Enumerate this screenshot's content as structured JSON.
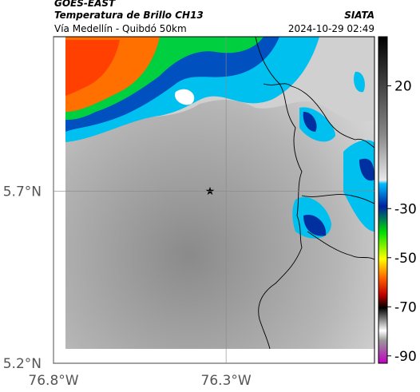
{
  "header": {
    "source": "GOES-EAST",
    "title": "Temperatura de Brillo CH13",
    "brand": "SIATA",
    "subtitle": "Vía Medellín - Quibdó 50km",
    "timestamp": "2024-10-29 02:49"
  },
  "map": {
    "lonlim": [
      -76.8,
      -75.87
    ],
    "latlim": [
      5.2,
      6.15
    ],
    "lonticks": [
      {
        "value": -76.8,
        "label": "76.8°W"
      },
      {
        "value": -76.3,
        "label": "76.3°W"
      }
    ],
    "latticks": [
      {
        "value": 5.7,
        "label": "5.7°N"
      },
      {
        "value": 5.2,
        "label": "5.2°N"
      }
    ]
  },
  "colorbar": {
    "lim": [
      40,
      -93
    ],
    "ticks": [
      20,
      -30,
      -50,
      -70,
      -90
    ]
  }
}
